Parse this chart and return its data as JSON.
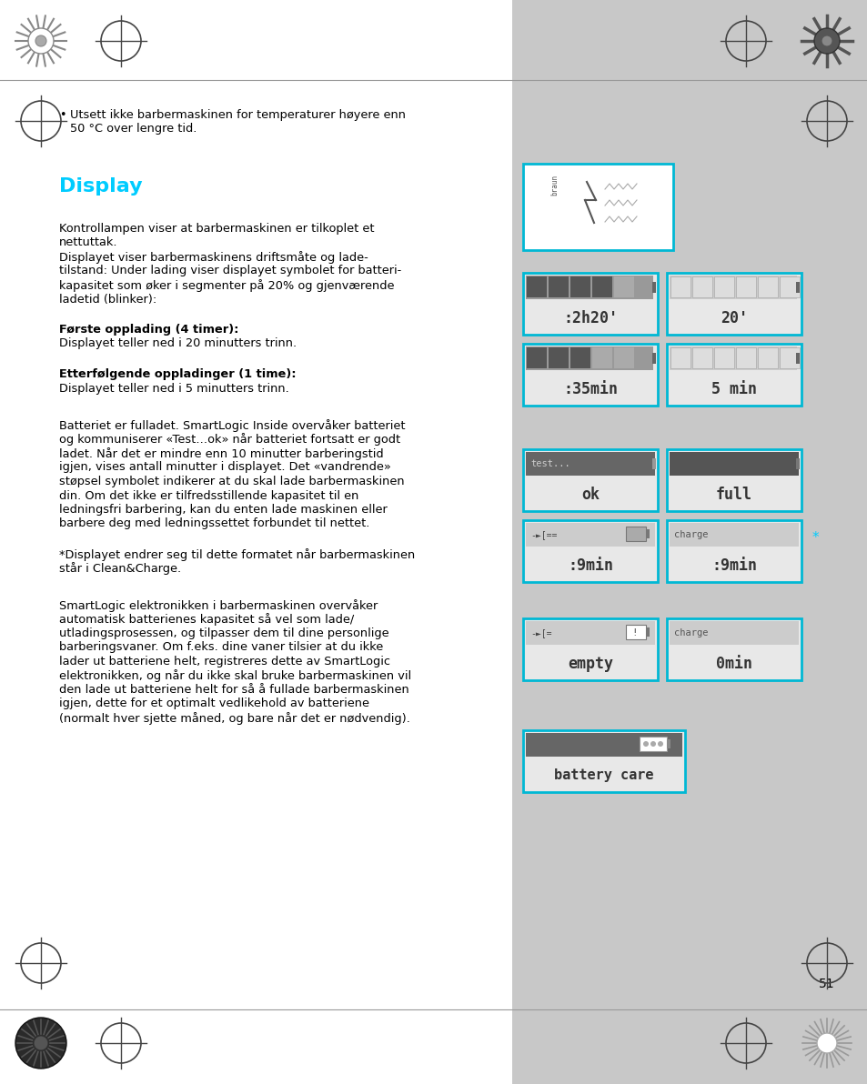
{
  "page_bg": "#c8c8c8",
  "left_bg": "#ffffff",
  "right_bg": "#c8c8c8",
  "title_color": "#00ccff",
  "body_color": "#000000",
  "border_color": "#00b8d4",
  "page_number": "51",
  "bullet_text": "Utsett ikke barbermaskinen for temperaturer høyere enn\n50 °C over lengre tid.",
  "display_title": "Display",
  "para1_line1": "Kontrollampen viser at barbermaskinen er tilkoplet et",
  "para1_line2": "nettuttak.",
  "para1_line3": "Displayet viser barbermaskinens driftsmåte og lade-",
  "para1_line4": "tilstand: Under lading viser displayet symbolet for batteri-",
  "para1_line5": "kapasitet som øker i segmenter på 20% og gjenværende",
  "para1_line6": "ladetid (blinker):",
  "bold1_title": "Første opplading (4 timer):",
  "bold1_body": "Displayet teller ned i 20 minutters trinn.",
  "bold2_title": "Etterfølgende oppladinger (1 time):",
  "bold2_body": "Displayet teller ned i 5 minutters trinn.",
  "para2_line1": "Batteriet er fulladet. SmartLogic Inside overvåker batteriet",
  "para2_line2": "og kommuniserer «Test…ok» når batteriet fortsatt er godt",
  "para2_line3": "ladet. Når det er mindre enn 10 minutter barberingstid",
  "para2_line4": "igjen, vises antall minutter i displayet. Det «vandrende»",
  "para2_line5": "støpsel symbolet indikerer at du skal lade barbermaskinen",
  "para2_line6": "din. Om det ikke er tilfredsstillende kapasitet til en",
  "para2_line7": "ledningsfri barbering, kan du enten lade maskinen eller",
  "para2_line8": "barbere deg med ledningssettet forbundet til nettet.",
  "star_note1": "*Displayet endrer seg til dette formatet når barbermaskinen",
  "star_note2": "står i Clean&Charge.",
  "para3_line1": "SmartLogic elektronikken i barbermaskinen overvåker",
  "para3_line2": "automatisk batterienes kapasitet så vel som lade/",
  "para3_line3": "utladingsprosessen, og tilpasser dem til dine personlige",
  "para3_line4": "barberingsvaner. Om f.eks. dine vaner tilsier at du ikke",
  "para3_line5": "lader ut batteriene helt, registreres dette av SmartLogic",
  "para3_line6": "elektronikken, og når du ikke skal bruke barbermaskinen vil",
  "para3_line7": "den lade ut batteriene helt for så å fullade barbermaskinen",
  "para3_line8": "igjen, dette for et optimalt vedlikehold av batteriene",
  "para3_line9": "(normalt hver sjette måned, og bare når det er nødvendig)."
}
